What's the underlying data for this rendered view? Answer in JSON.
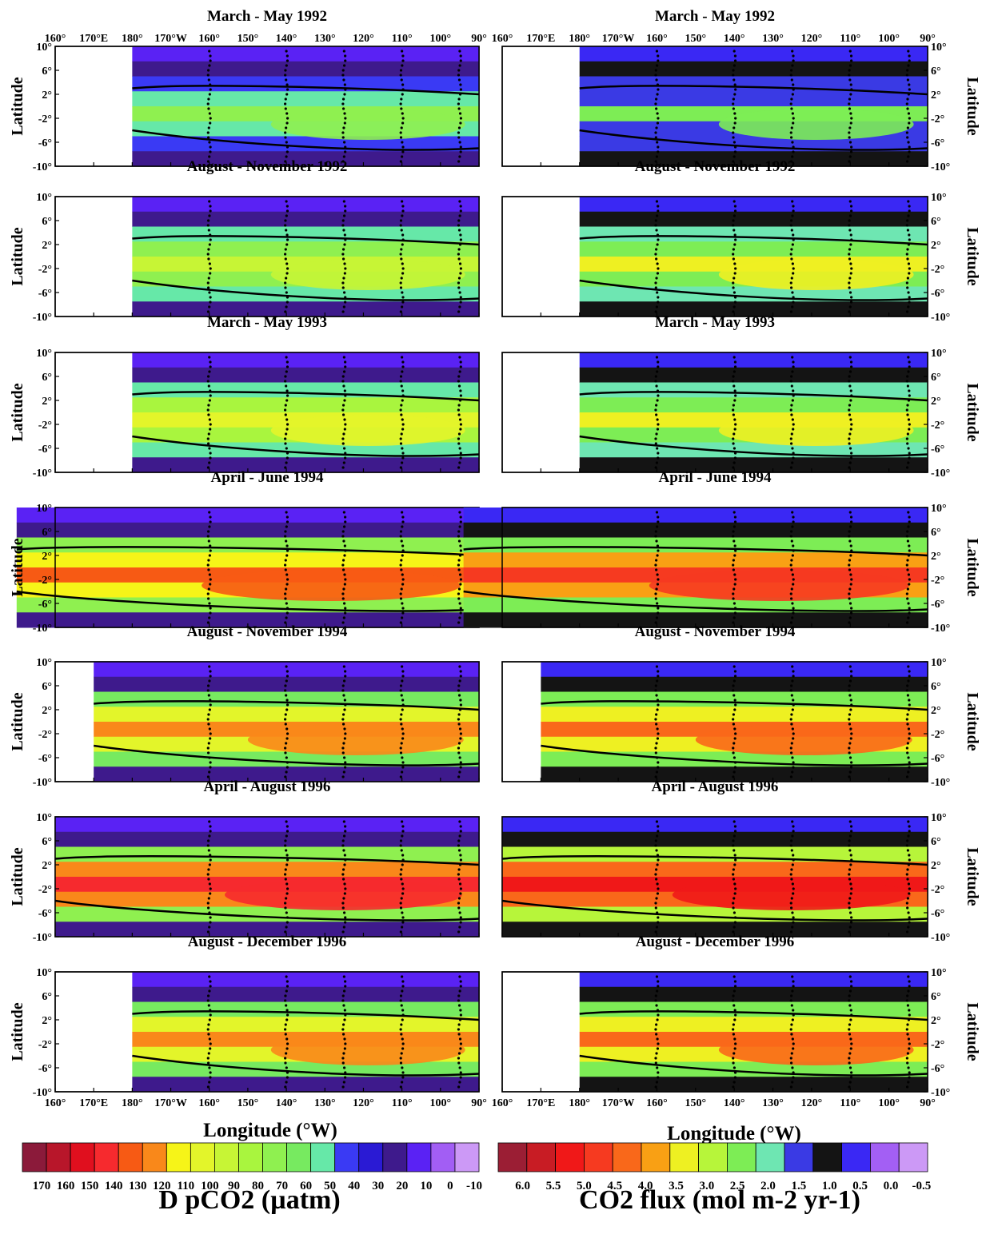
{
  "figure": {
    "left_title": "D pCO2 (µatm)",
    "right_title": "CO2 flux (mol m-2 yr-1)",
    "x_axis_label": "Longitude (°W)",
    "y_axis_label": "Latitude"
  },
  "axes": {
    "x_ticks": [
      "160°",
      "170°E",
      "180°",
      "170°W",
      "160°",
      "150°",
      "140°",
      "130°",
      "120°",
      "110°",
      "100°",
      "90°"
    ],
    "y_ticks": [
      "10°",
      "6°",
      "2°",
      "-2°",
      "-6°",
      "-10°"
    ]
  },
  "chart_data": [
    {
      "type": "heatmap",
      "variable": "ΔpCO2",
      "unit": "µatm",
      "xlabel": "Longitude (°W)",
      "ylabel": "Latitude",
      "ylim": [
        -10,
        10
      ],
      "colorbar_ticks": [
        "170",
        "160",
        "150",
        "140",
        "130",
        "120",
        "110",
        "100",
        "90",
        "80",
        "70",
        "60",
        "50",
        "40",
        "30",
        "20",
        "10",
        "0",
        "-10"
      ],
      "colorbar_colors": [
        "#8b1a3a",
        "#b8162a",
        "#e00f1e",
        "#f62a2e",
        "#f75a14",
        "#f9881a",
        "#f6f418",
        "#e3f52a",
        "#c7f535",
        "#a9f53e",
        "#8ff050",
        "#77ea60",
        "#66e8a8",
        "#3a3af4",
        "#2a1ad4",
        "#3e1a8c",
        "#5a22f4",
        "#a25ef4",
        "#cc99f6"
      ],
      "panels": [
        {
          "title": "March - May 1992",
          "data_start": 180
        },
        {
          "title": "August - November 1992",
          "data_start": 180
        },
        {
          "title": "March - May 1993",
          "data_start": 180
        },
        {
          "title": "April - June 1994",
          "data_start": 150
        },
        {
          "title": "August - November 1994",
          "data_start": 170
        },
        {
          "title": "April - August 1996",
          "data_start": 160
        },
        {
          "title": "August - December 1996",
          "data_start": 180
        }
      ]
    },
    {
      "type": "heatmap",
      "variable": "CO2 flux",
      "unit": "mol m-2 yr-1",
      "xlabel": "Longitude (°W)",
      "ylabel": "Latitude",
      "ylim": [
        -10,
        10
      ],
      "colorbar_ticks": [
        "6.0",
        "5.5",
        "5.0",
        "4.5",
        "4.0",
        "3.5",
        "3.0",
        "2.5",
        "2.0",
        "1.5",
        "1.0",
        "0.5",
        "0.0",
        "-0.5"
      ],
      "colorbar_colors": [
        "#9b1e34",
        "#c81c24",
        "#f01818",
        "#f63a20",
        "#f9681a",
        "#f9a014",
        "#eef022",
        "#b7f53a",
        "#7ded55",
        "#6ee6b2",
        "#3a3ae4",
        "#141414",
        "#3a28f4",
        "#a35ff4",
        "#cc99f6"
      ],
      "panels": [
        {
          "title": "March - May 1992",
          "data_start": 180
        },
        {
          "title": "August - November 1992",
          "data_start": 180
        },
        {
          "title": "March - May 1993",
          "data_start": 180
        },
        {
          "title": "April - June 1994",
          "data_start": 150
        },
        {
          "title": "August - November 1994",
          "data_start": 170
        },
        {
          "title": "April - August 1996",
          "data_start": 160
        },
        {
          "title": "August - December 1996",
          "data_start": 180
        }
      ]
    }
  ]
}
